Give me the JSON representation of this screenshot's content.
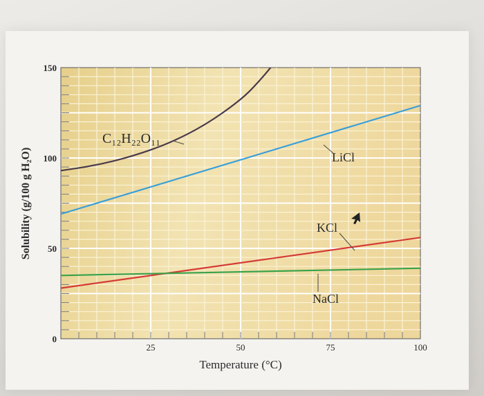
{
  "chart_data": {
    "type": "line",
    "title": "",
    "xlabel": "Temperature (°C)",
    "ylabel": "Solubility (g/100 g H₂O)",
    "xlim": [
      0,
      100
    ],
    "ylim": [
      0,
      150
    ],
    "x_ticks": [
      "25",
      "50",
      "75",
      "100"
    ],
    "y_ticks": [
      "0",
      "50",
      "100",
      "150"
    ],
    "grid": true,
    "series": [
      {
        "name": "C₁₂H₂₂O₁₁",
        "color": "#4a3a4a",
        "x": [
          0,
          10,
          20,
          30,
          40,
          50,
          55,
          60
        ],
        "y": [
          93,
          96,
          101,
          108,
          118,
          132,
          142,
          154
        ]
      },
      {
        "name": "LiCl",
        "color": "#3a9fd8",
        "x": [
          0,
          100
        ],
        "y": [
          69,
          129
        ]
      },
      {
        "name": "KCl",
        "color": "#d43a35",
        "x": [
          0,
          100
        ],
        "y": [
          28,
          56
        ]
      },
      {
        "name": "NaCl",
        "color": "#3aa24a",
        "x": [
          0,
          100
        ],
        "y": [
          35,
          39
        ]
      }
    ]
  }
}
